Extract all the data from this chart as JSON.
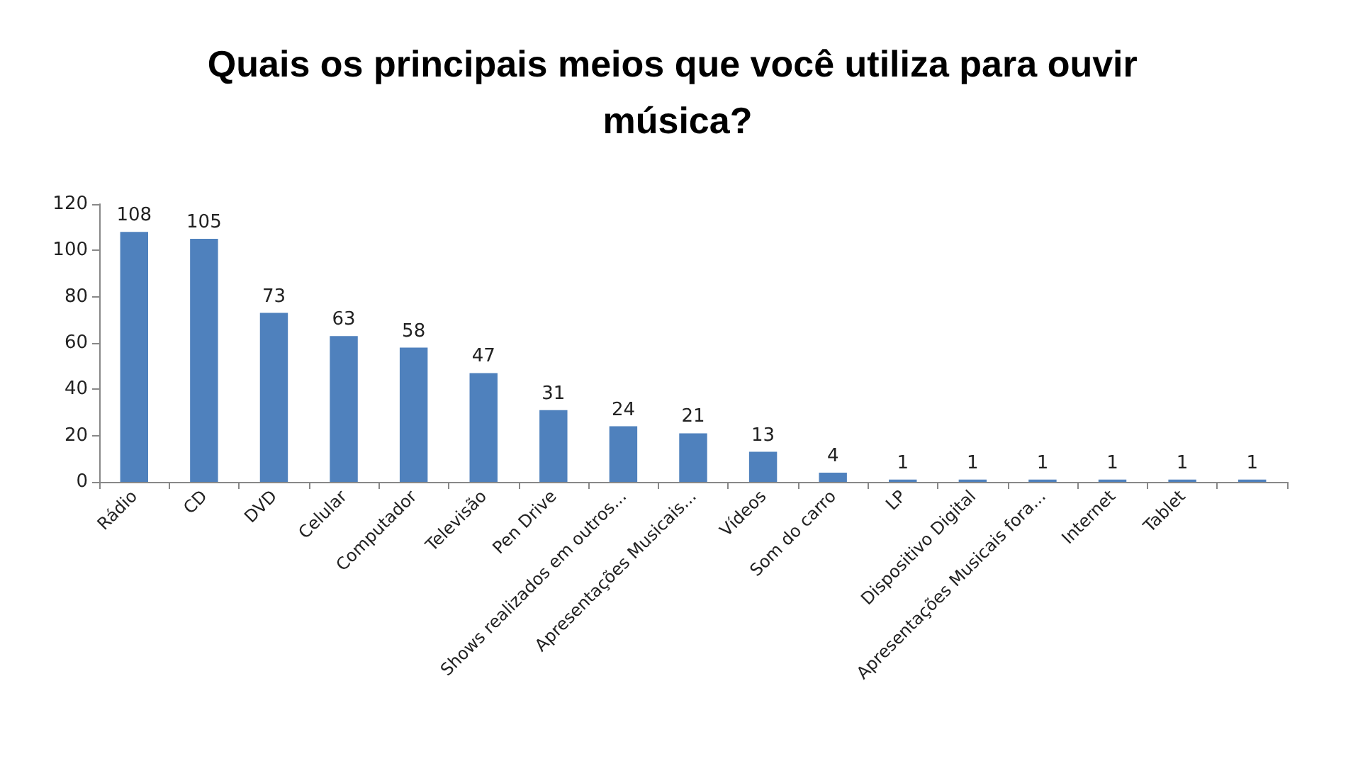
{
  "chart_data": {
    "type": "bar",
    "title": "Quais os principais meios que você utiliza para ouvir música?",
    "categories": [
      "Rádio",
      "CD",
      "DVD",
      "Celular",
      "Computador",
      "Televisão",
      "Pen Drive",
      "Shows realizados em outros...",
      "Apresentações Musicais...",
      "Vídeos",
      "Som do carro",
      "LP",
      "Dispositivo Digital",
      "Apresentações Musicais fora...",
      "Internet",
      "Tablet",
      null
    ],
    "values": [
      108,
      105,
      73,
      63,
      58,
      47,
      31,
      24,
      21,
      13,
      4,
      1,
      1,
      1,
      1,
      1,
      1
    ],
    "color": "#4f81bd",
    "ylim": [
      0,
      120
    ],
    "yticks": [
      0,
      20,
      40,
      60,
      80,
      100,
      120
    ],
    "grid": false,
    "data_labels": true
  }
}
